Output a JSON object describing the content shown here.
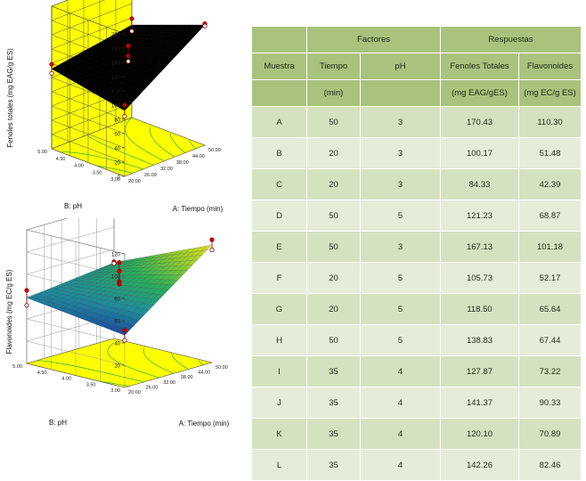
{
  "chart_data": [
    {
      "type": "surface3d",
      "zlabel": "Fenoles totales (mg EAG/g ES)",
      "xlabel": "A: Tiempo (min)",
      "ylabel": "B: pH",
      "x_ticks": [
        "20.00",
        "26.00",
        "32.00",
        "38.00",
        "44.00",
        "50.00"
      ],
      "y_ticks": [
        "3.00",
        "3.50",
        "4.00",
        "4.50",
        "5.00"
      ],
      "z_ticks": [
        "0",
        "20",
        "40",
        "60",
        "80",
        "100",
        "120",
        "140",
        "160",
        "180",
        "200"
      ],
      "zlim": [
        0,
        200
      ],
      "corners": {
        "x20_y3": 92.25,
        "x50_y3": 168.78,
        "x20_y5": 112.12,
        "x50_y5": 130.03
      },
      "points": [
        [
          50,
          3,
          170.43
        ],
        [
          20,
          3,
          100.17
        ],
        [
          20,
          3,
          84.33
        ],
        [
          50,
          5,
          121.23
        ],
        [
          50,
          3,
          167.13
        ],
        [
          20,
          5,
          105.73
        ],
        [
          20,
          5,
          118.5
        ],
        [
          50,
          5,
          138.83
        ],
        [
          35,
          4,
          127.87
        ],
        [
          35,
          4,
          141.37
        ],
        [
          35,
          4,
          120.1
        ],
        [
          35,
          4,
          142.26
        ]
      ],
      "background": "#ffff00",
      "surface_color": "#000000"
    },
    {
      "type": "surface3d",
      "zlabel": "Flavonoides  (mg EC/g ES)",
      "xlabel": "A: Tiempo (min)",
      "ylabel": "B: pH",
      "x_ticks": [
        "20.00",
        "26.00",
        "32.00",
        "38.00",
        "44.00",
        "50.00"
      ],
      "y_ticks": [
        "3.00",
        "3.50",
        "4.00",
        "4.50",
        "5.00"
      ],
      "z_ticks": [
        "20",
        "40",
        "60",
        "80",
        "100",
        "120"
      ],
      "zlim": [
        0,
        120
      ],
      "corners": {
        "x20_y3": 46.9,
        "x50_y3": 105.7,
        "x20_y5": 58.9,
        "x50_y5": 68.2
      },
      "points": [
        [
          50,
          3,
          110.3
        ],
        [
          20,
          3,
          51.48
        ],
        [
          20,
          3,
          42.39
        ],
        [
          50,
          5,
          68.87
        ],
        [
          50,
          3,
          101.18
        ],
        [
          20,
          5,
          52.17
        ],
        [
          20,
          5,
          65.64
        ],
        [
          50,
          5,
          67.44
        ],
        [
          35,
          4,
          73.22
        ],
        [
          35,
          4,
          90.33
        ],
        [
          35,
          4,
          70.89
        ],
        [
          35,
          4,
          82.46
        ]
      ],
      "background": "#ffffff",
      "floor_color": "#ffff00",
      "colormap": [
        "#1a3d99",
        "#1e8a9e",
        "#2aae5a",
        "#9ccf2c",
        "#e7e024"
      ]
    }
  ],
  "table": {
    "header_factores": "Factores",
    "header_respuestas": "Respuestas",
    "col_muestra": "Muestra",
    "col_tiempo": "Tiempo",
    "col_tiempo_unit": "(min)",
    "col_ph": "pH",
    "col_fenoles": "Fenoles Totales",
    "col_fenoles_unit": "(mg EAG/gES)",
    "col_flavonoides": "Flavonoides",
    "col_flavonoides_unit": "(mg EC/g ES)",
    "rows": [
      {
        "muestra": "A",
        "tiempo": "50",
        "ph": "3",
        "fenoles": "170.43",
        "flavonoides": "110.30"
      },
      {
        "muestra": "B",
        "tiempo": "20",
        "ph": "3",
        "fenoles": "100.17",
        "flavonoides": "51.48"
      },
      {
        "muestra": "C",
        "tiempo": "20",
        "ph": "3",
        "fenoles": "84.33",
        "flavonoides": "42.39"
      },
      {
        "muestra": "D",
        "tiempo": "50",
        "ph": "5",
        "fenoles": "121.23",
        "flavonoides": "68.87"
      },
      {
        "muestra": "E",
        "tiempo": "50",
        "ph": "3",
        "fenoles": "167.13",
        "flavonoides": "101.18"
      },
      {
        "muestra": "F",
        "tiempo": "20",
        "ph": "5",
        "fenoles": "105.73",
        "flavonoides": "52.17"
      },
      {
        "muestra": "G",
        "tiempo": "20",
        "ph": "5",
        "fenoles": "118.50",
        "flavonoides": "65.64"
      },
      {
        "muestra": "H",
        "tiempo": "50",
        "ph": "5",
        "fenoles": "138.83",
        "flavonoides": "67.44"
      },
      {
        "muestra": "I",
        "tiempo": "35",
        "ph": "4",
        "fenoles": "127.87",
        "flavonoides": "73.22"
      },
      {
        "muestra": "J",
        "tiempo": "35",
        "ph": "4",
        "fenoles": "141.37",
        "flavonoides": "90.33"
      },
      {
        "muestra": "K",
        "tiempo": "35",
        "ph": "4",
        "fenoles": "120.10",
        "flavonoides": "70.89"
      },
      {
        "muestra": "L",
        "tiempo": "35",
        "ph": "4",
        "fenoles": "142.26",
        "flavonoides": "82.46"
      }
    ]
  }
}
